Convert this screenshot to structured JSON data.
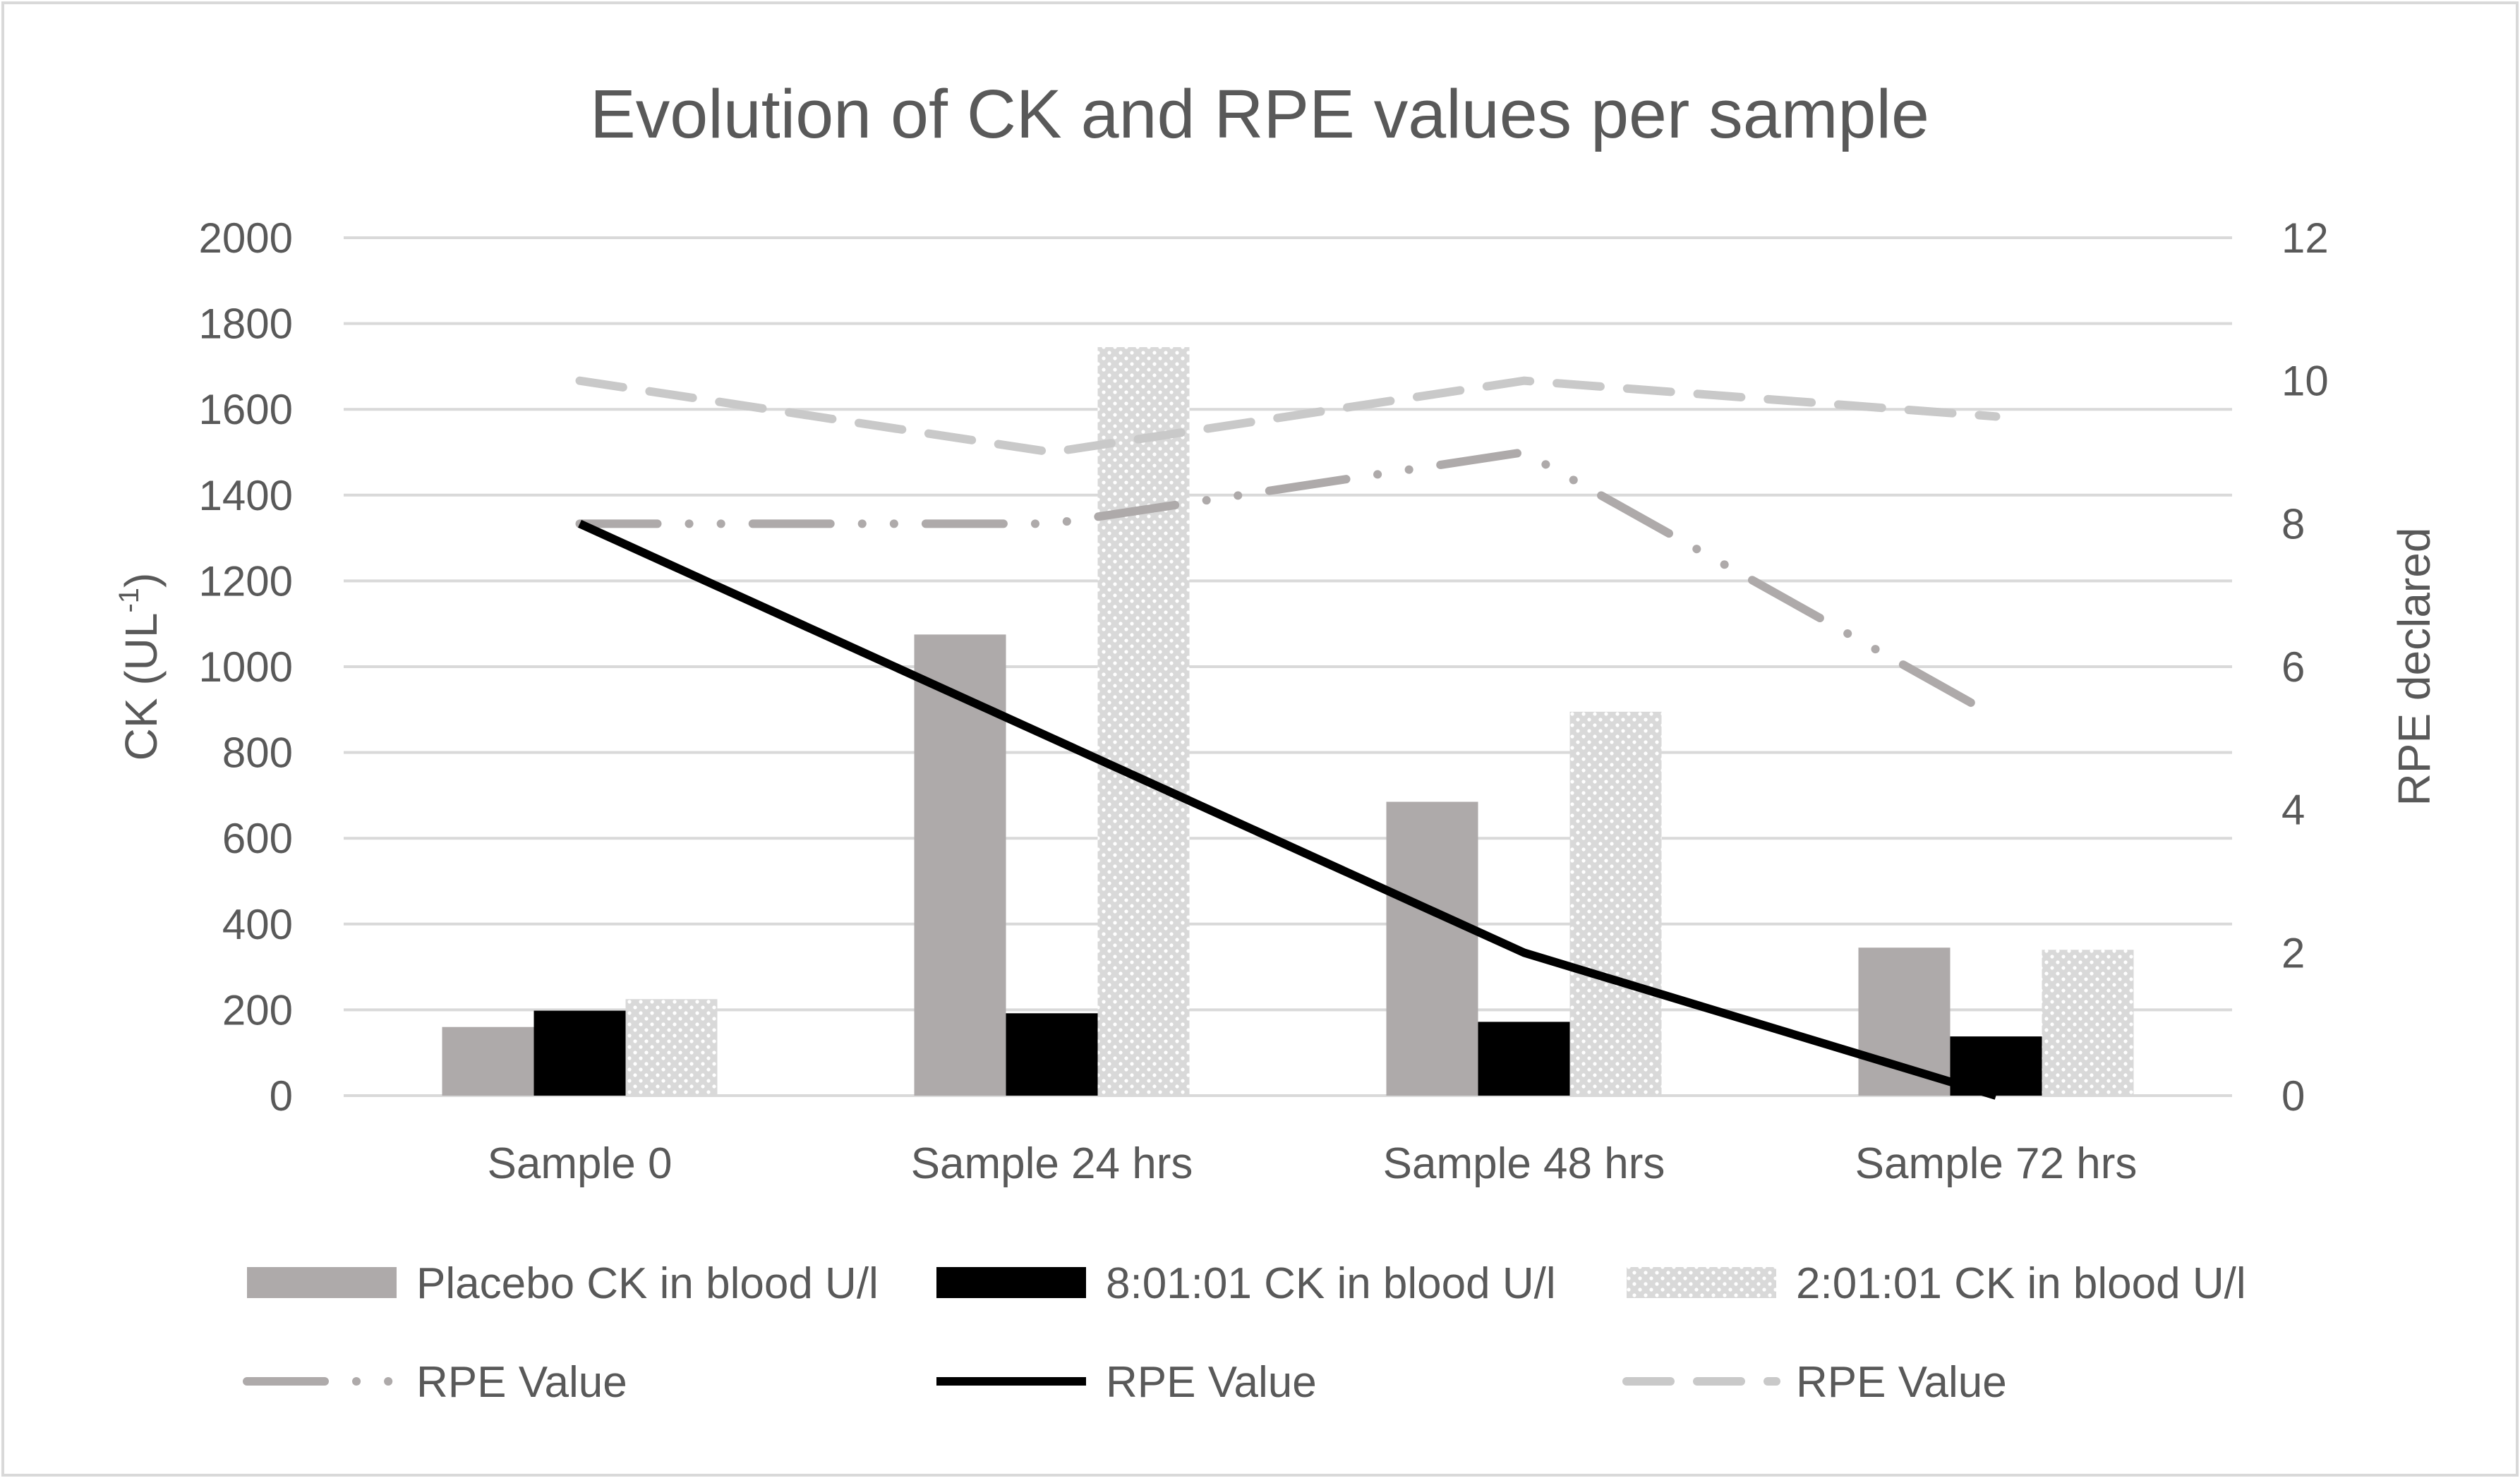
{
  "chart_data": {
    "type": "bar",
    "title": "Evolution of CK and RPE values per sample",
    "ylabel_left": {
      "base": "CK (UL",
      "superscript": "-1",
      "close": ")"
    },
    "ylabel_right": "RPE declared",
    "xlabel": "",
    "categories": [
      "Sample 0",
      "Sample 24 hrs",
      "Sample 48 hrs",
      "Sample 72 hrs"
    ],
    "ylim_left": [
      0,
      2000
    ],
    "yticks_left": [
      "0",
      "200",
      "400",
      "600",
      "800",
      "1000",
      "1200",
      "1400",
      "1600",
      "1800",
      "2000"
    ],
    "ylim_right": [
      0,
      12
    ],
    "yticks_right": [
      "0",
      "2",
      "4",
      "6",
      "8",
      "10",
      "12"
    ],
    "grid": true,
    "legend_position": "bottom",
    "series": [
      {
        "name": "Placebo CK in blood U/l",
        "kind": "bar",
        "axis": "left",
        "style": "solid",
        "color": "#aeaaaa",
        "values": [
          160,
          1075,
          685,
          345
        ]
      },
      {
        "name": "8:01:01 CK in blood U/l",
        "kind": "bar",
        "axis": "left",
        "style": "solid",
        "color": "#000000",
        "values": [
          198,
          192,
          172,
          138
        ]
      },
      {
        "name": "2:01:01 CK in blood U/l",
        "kind": "bar",
        "axis": "left",
        "style": "dotted",
        "color": "#d9d9d9",
        "values": [
          225,
          1745,
          895,
          340
        ]
      },
      {
        "name": "RPE Value",
        "kind": "line",
        "axis": "right",
        "style": "dash-dot",
        "color": "#aeaaaa",
        "values": [
          8,
          8,
          9,
          5.3
        ]
      },
      {
        "name": "RPE Value",
        "kind": "line",
        "axis": "right",
        "style": "solid",
        "color": "#000000",
        "values": [
          8,
          5,
          2,
          0
        ]
      },
      {
        "name": "RPE Value",
        "kind": "line",
        "axis": "right",
        "style": "dashed",
        "color": "#c9c9c9",
        "values": [
          10,
          9,
          10,
          9.5
        ]
      }
    ]
  }
}
